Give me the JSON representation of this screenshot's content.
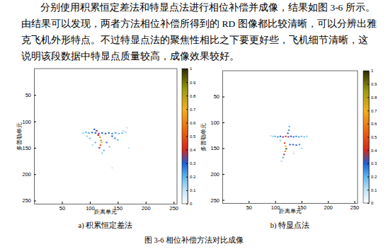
{
  "paragraph": [
    "分别使用积累恒定差法和特显点法进行相位补偿并成像，结果如图 3-6 所示。",
    "由结果可以发现，两者方法相位补偿所得到的 RD 图像都比较清晰，可以分辨出雅",
    "克飞机外形特点。不过特显点法的聚焦性相比之下要更好些，飞机细节清晰，这",
    "说明该段数据中特显点质量较高，成像效果较好。"
  ],
  "chart_data": [
    {
      "type": "heatmap",
      "title": "a)  积累恒定差法",
      "xlabel": "距离单元",
      "ylabel": "多普勒单元",
      "xlim": [
        0,
        256
      ],
      "ylim": [
        0,
        256
      ],
      "xticks": [
        50,
        100,
        150,
        200,
        250
      ],
      "yticks": [
        50,
        100,
        150,
        200,
        250
      ],
      "colorbar": {
        "lim": [
          0,
          1
        ],
        "ticks": [
          0,
          0.1,
          0.2,
          0.3,
          0.4,
          0.5,
          0.6,
          0.7,
          0.8,
          0.9,
          1
        ]
      },
      "cells": [
        [
          88,
          122,
          0.15
        ],
        [
          93,
          121,
          0.2
        ],
        [
          98,
          122,
          0.22
        ],
        [
          104,
          121,
          0.28
        ],
        [
          110,
          122,
          0.3
        ],
        [
          116,
          123,
          0.35
        ],
        [
          122,
          122,
          0.32
        ],
        [
          128,
          123,
          0.3
        ],
        [
          134,
          122,
          0.28
        ],
        [
          140,
          123,
          0.25
        ],
        [
          146,
          122,
          0.22
        ],
        [
          152,
          123,
          0.2
        ],
        [
          158,
          122,
          0.18
        ],
        [
          164,
          121,
          0.12
        ],
        [
          108,
          115,
          0.3
        ],
        [
          112,
          118,
          0.35
        ],
        [
          115,
          126,
          0.4
        ],
        [
          118,
          130,
          0.6
        ],
        [
          120,
          136,
          0.85
        ],
        [
          121,
          140,
          0.7
        ],
        [
          119,
          145,
          0.5
        ],
        [
          117,
          150,
          0.35
        ],
        [
          140,
          128,
          0.3
        ],
        [
          145,
          132,
          0.25
        ],
        [
          150,
          135,
          0.2
        ],
        [
          130,
          140,
          0.25
        ],
        [
          125,
          155,
          0.2
        ],
        [
          122,
          160,
          0.15
        ],
        [
          110,
          140,
          0.2
        ],
        [
          100,
          132,
          0.18
        ],
        [
          95,
          128,
          0.15
        ],
        [
          160,
          118,
          0.12
        ],
        [
          166,
          112,
          0.1
        ],
        [
          170,
          150,
          0.1
        ],
        [
          105,
          145,
          0.12
        ],
        [
          135,
          148,
          0.15
        ],
        [
          140,
          188,
          0.08
        ]
      ]
    },
    {
      "type": "heatmap",
      "title": "b)  特显点法",
      "xlabel": "距离单元",
      "ylabel": "多普勒单元",
      "xlim": [
        0,
        256
      ],
      "ylim": [
        0,
        256
      ],
      "xticks": [
        50,
        100,
        150,
        200,
        250
      ],
      "yticks": [
        50,
        100,
        150,
        200,
        250
      ],
      "colorbar": {
        "lim": [
          0,
          1
        ],
        "ticks": [
          0,
          0.1,
          0.2,
          0.3,
          0.4,
          0.5,
          0.6,
          0.7,
          0.8,
          0.9,
          1
        ]
      },
      "cells": [
        [
          92,
          126,
          0.1
        ],
        [
          96,
          127,
          0.15
        ],
        [
          100,
          127,
          0.2
        ],
        [
          105,
          128,
          0.25
        ],
        [
          110,
          127,
          0.3
        ],
        [
          115,
          128,
          0.35
        ],
        [
          120,
          127,
          0.4
        ],
        [
          125,
          128,
          0.35
        ],
        [
          130,
          127,
          0.3
        ],
        [
          135,
          128,
          0.28
        ],
        [
          140,
          127,
          0.25
        ],
        [
          145,
          128,
          0.22
        ],
        [
          150,
          127,
          0.2
        ],
        [
          155,
          128,
          0.18
        ],
        [
          160,
          127,
          0.15
        ],
        [
          127,
          108,
          0.2
        ],
        [
          126,
          115,
          0.25
        ],
        [
          124,
          121,
          0.3
        ],
        [
          118,
          140,
          0.45
        ],
        [
          120,
          146,
          0.7
        ],
        [
          121,
          151,
          0.95
        ],
        [
          119,
          156,
          0.6
        ],
        [
          117,
          162,
          0.35
        ],
        [
          115,
          168,
          0.2
        ],
        [
          128,
          143,
          0.3
        ],
        [
          134,
          143,
          0.32
        ],
        [
          140,
          144,
          0.3
        ],
        [
          146,
          143,
          0.25
        ],
        [
          150,
          150,
          0.15
        ],
        [
          112,
          175,
          0.12
        ],
        [
          135,
          160,
          0.1
        ],
        [
          110,
          135,
          0.15
        ]
      ]
    }
  ],
  "caption": "图 3-6  相位补偿方法对比成像"
}
